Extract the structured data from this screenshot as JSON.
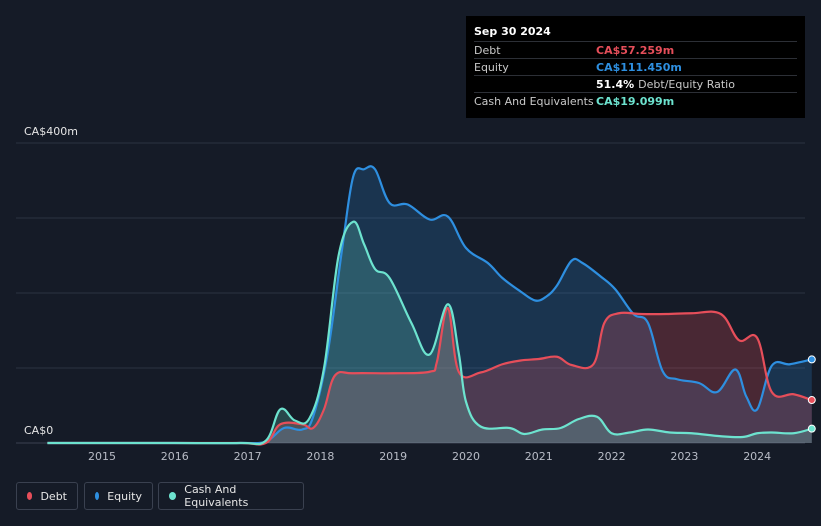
{
  "tooltip": {
    "date": "Sep 30 2024",
    "rows": [
      {
        "label": "Debt",
        "value": "CA$57.259m",
        "color": "#e64e5a"
      },
      {
        "label": "Equity",
        "value": "CA$111.450m",
        "color": "#2e8fe0"
      },
      {
        "label": "",
        "value": "51.4%",
        "suffix": "Debt/Equity Ratio",
        "color": "#ffffff"
      },
      {
        "label": "Cash And Equivalents",
        "value": "CA$19.099m",
        "color": "#6de3cf"
      }
    ]
  },
  "legend": [
    {
      "label": "Debt",
      "color": "#e64e5a"
    },
    {
      "label": "Equity",
      "color": "#2e8fe0"
    },
    {
      "label": "Cash And Equivalents",
      "color": "#6de3cf"
    }
  ],
  "chart_data": {
    "type": "area",
    "title": "",
    "ylabel_top": "CA$400m",
    "ylabel_bottom": "CA$0",
    "ylim": [
      0,
      400
    ],
    "xlim": [
      2014.25,
      2024.75
    ],
    "x_ticks": [
      "2015",
      "2016",
      "2017",
      "2018",
      "2019",
      "2020",
      "2021",
      "2022",
      "2023",
      "2024"
    ],
    "series": [
      {
        "name": "Equity",
        "color": "#2e8fe0",
        "points": [
          [
            2014.25,
            0
          ],
          [
            2015,
            0
          ],
          [
            2016,
            0
          ],
          [
            2016.9,
            0
          ],
          [
            2017.25,
            2
          ],
          [
            2017.5,
            20
          ],
          [
            2017.75,
            18
          ],
          [
            2017.9,
            35
          ],
          [
            2018.1,
            120
          ],
          [
            2018.3,
            260
          ],
          [
            2018.45,
            355
          ],
          [
            2018.6,
            365
          ],
          [
            2018.75,
            365
          ],
          [
            2018.95,
            320
          ],
          [
            2019.2,
            318
          ],
          [
            2019.5,
            298
          ],
          [
            2019.75,
            302
          ],
          [
            2020.0,
            260
          ],
          [
            2020.3,
            240
          ],
          [
            2020.5,
            220
          ],
          [
            2020.75,
            202
          ],
          [
            2020.95,
            190
          ],
          [
            2021.1,
            195
          ],
          [
            2021.25,
            210
          ],
          [
            2021.45,
            243
          ],
          [
            2021.6,
            240
          ],
          [
            2021.85,
            222
          ],
          [
            2022.05,
            205
          ],
          [
            2022.3,
            172
          ],
          [
            2022.5,
            160
          ],
          [
            2022.7,
            96
          ],
          [
            2022.9,
            85
          ],
          [
            2023.2,
            80
          ],
          [
            2023.45,
            68
          ],
          [
            2023.7,
            98
          ],
          [
            2023.85,
            62
          ],
          [
            2024.0,
            45
          ],
          [
            2024.2,
            103
          ],
          [
            2024.45,
            105
          ],
          [
            2024.75,
            111.45
          ]
        ]
      },
      {
        "name": "Debt",
        "color": "#e64e5a",
        "points": [
          [
            2014.25,
            0
          ],
          [
            2015,
            0
          ],
          [
            2016,
            0
          ],
          [
            2016.9,
            0
          ],
          [
            2017.25,
            0
          ],
          [
            2017.45,
            25
          ],
          [
            2017.75,
            25
          ],
          [
            2017.9,
            20
          ],
          [
            2018.05,
            45
          ],
          [
            2018.2,
            90
          ],
          [
            2018.45,
            93
          ],
          [
            2019.0,
            93
          ],
          [
            2019.5,
            95
          ],
          [
            2019.6,
            108
          ],
          [
            2019.75,
            180
          ],
          [
            2019.9,
            95
          ],
          [
            2020.2,
            94
          ],
          [
            2020.5,
            105
          ],
          [
            2020.75,
            110
          ],
          [
            2021.0,
            112
          ],
          [
            2021.25,
            115
          ],
          [
            2021.45,
            104
          ],
          [
            2021.75,
            105
          ],
          [
            2021.9,
            160
          ],
          [
            2022.1,
            173
          ],
          [
            2022.4,
            172
          ],
          [
            2022.75,
            172
          ],
          [
            2023.1,
            173
          ],
          [
            2023.5,
            172
          ],
          [
            2023.75,
            137
          ],
          [
            2024.0,
            140
          ],
          [
            2024.2,
            68
          ],
          [
            2024.5,
            65
          ],
          [
            2024.75,
            57.26
          ]
        ]
      },
      {
        "name": "Cash And Equivalents",
        "color": "#6de3cf",
        "points": [
          [
            2014.25,
            0
          ],
          [
            2015,
            0
          ],
          [
            2016,
            0
          ],
          [
            2016.9,
            0
          ],
          [
            2017.25,
            3
          ],
          [
            2017.45,
            45
          ],
          [
            2017.65,
            30
          ],
          [
            2017.85,
            33
          ],
          [
            2018.05,
            100
          ],
          [
            2018.25,
            250
          ],
          [
            2018.45,
            295
          ],
          [
            2018.6,
            265
          ],
          [
            2018.75,
            232
          ],
          [
            2018.95,
            220
          ],
          [
            2019.25,
            160
          ],
          [
            2019.5,
            118
          ],
          [
            2019.75,
            185
          ],
          [
            2019.9,
            120
          ],
          [
            2020.0,
            55
          ],
          [
            2020.2,
            22
          ],
          [
            2020.6,
            20
          ],
          [
            2020.8,
            12
          ],
          [
            2021.05,
            18
          ],
          [
            2021.3,
            20
          ],
          [
            2021.55,
            32
          ],
          [
            2021.8,
            35
          ],
          [
            2022.0,
            13
          ],
          [
            2022.25,
            14
          ],
          [
            2022.5,
            18
          ],
          [
            2022.8,
            14
          ],
          [
            2023.1,
            13
          ],
          [
            2023.5,
            9
          ],
          [
            2023.8,
            8
          ],
          [
            2024.0,
            13
          ],
          [
            2024.2,
            14
          ],
          [
            2024.5,
            13
          ],
          [
            2024.75,
            19.1
          ]
        ]
      }
    ]
  }
}
